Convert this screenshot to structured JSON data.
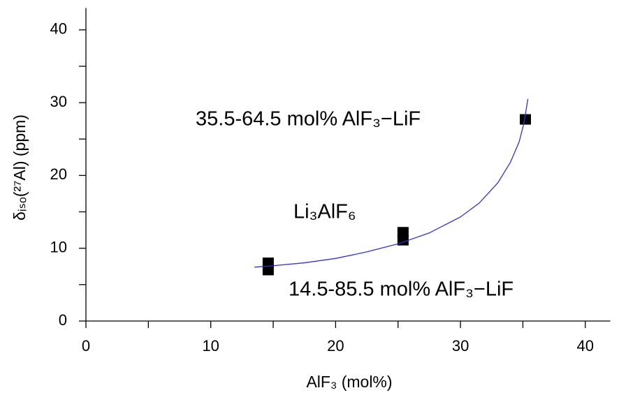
{
  "chart_data": {
    "type": "scatter",
    "x_label": "AlF₃ (mol%)",
    "y_label": "δᵢₛₒ(²⁷Al) (ppm)",
    "annotations": [
      "35.5-64.5 mol% AlF₃−LiF",
      "Li₃AlF₆",
      "14.5-85.5 mol% AlF₃−LiF"
    ],
    "xlim": [
      0,
      42
    ],
    "ylim": [
      0,
      43
    ],
    "xticks": [
      0,
      10,
      20,
      30,
      40
    ],
    "yticks": [
      0,
      10,
      20,
      30,
      40
    ],
    "xminorticks": [
      5,
      15,
      25,
      35
    ],
    "yminorticks": [
      5,
      15,
      25,
      35
    ],
    "series": [
      {
        "color": "#000000",
        "marker": "square",
        "x": [
          14.6,
          14.6,
          25.4,
          25.4,
          35.2
        ],
        "values": [
          7.0,
          8.0,
          11.1,
          12.2,
          27.7
        ]
      },
      {
        "color": "#3333cc",
        "marker": "line",
        "x": [
          13.5,
          15,
          17.5,
          20,
          22.5,
          25,
          27.5,
          30,
          31.5,
          33,
          34,
          34.7,
          35.1,
          35.4
        ],
        "values": [
          7.4,
          7.6,
          8.0,
          8.6,
          9.5,
          10.6,
          12.1,
          14.3,
          16.2,
          19.0,
          21.8,
          24.6,
          27.3,
          30.5
        ]
      }
    ]
  }
}
